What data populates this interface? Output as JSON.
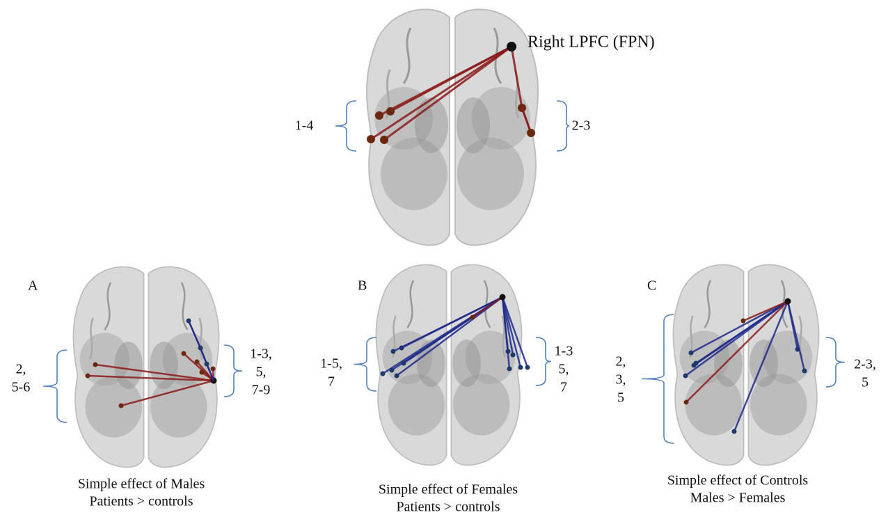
{
  "top": {
    "node_label": "Right LPFC (FPN)",
    "left_label": [
      "1-4"
    ],
    "right_label": [
      "2-3"
    ]
  },
  "panels": [
    {
      "letter": "A",
      "left_label": [
        "2,",
        "5-6"
      ],
      "right_label": [
        "1-3,",
        "5,",
        "7-9"
      ],
      "caption": [
        "Simple effect of Males",
        "Patients > controls"
      ]
    },
    {
      "letter": "B",
      "left_label": [
        "1-5,",
        "7"
      ],
      "right_label": [
        "1-3",
        "5,",
        "7"
      ],
      "caption": [
        "Simple effect of Females",
        "Patients > controls"
      ]
    },
    {
      "letter": "C",
      "left_label": [
        "2,",
        "3,",
        "5"
      ],
      "right_label": [
        "2-3,",
        "5"
      ],
      "caption": [
        "Simple effect of Controls",
        "Males > Females"
      ]
    }
  ]
}
